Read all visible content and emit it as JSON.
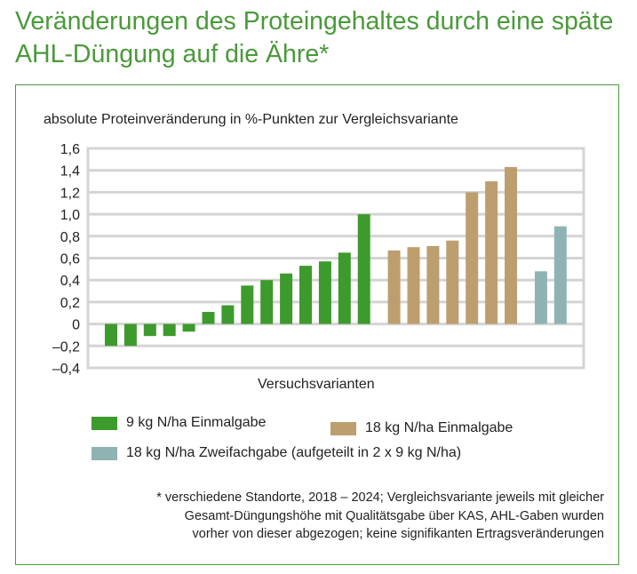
{
  "title": "Veränderungen des Proteingehaltes durch eine späte AHL-Düngung auf die Ähre*",
  "chart_data": {
    "type": "bar",
    "ylabel": "absolute Proteinveränderung in %-Punkten zur Vergleichsvariante",
    "xlabel": "Versuchsvarianten",
    "ylim": [
      -0.4,
      1.6
    ],
    "yticks": [
      "1,6",
      "1,4",
      "1,2",
      "1,0",
      "0,8",
      "0,6",
      "0,4",
      "0,2",
      "0",
      "–0,2",
      "–0,4"
    ],
    "grid": true,
    "series": [
      {
        "name": "9 kg N/ha Einmalgabe",
        "color": "#3d9a2c",
        "values": [
          -0.2,
          -0.2,
          -0.11,
          -0.11,
          -0.07,
          0.11,
          0.17,
          0.35,
          0.4,
          0.46,
          0.53,
          0.57,
          0.65,
          1.0
        ]
      },
      {
        "name": "18 kg N/ha Einmalgabe",
        "color": "#bd9e6e",
        "values": [
          0.67,
          0.7,
          0.71,
          0.76,
          1.2,
          1.3,
          1.43
        ]
      },
      {
        "name": "18 kg N/ha Zweifachgabe (aufgeteilt in 2 x 9 kg N/ha)",
        "color": "#8fb3b3",
        "values": [
          0.48,
          0.89
        ]
      }
    ]
  },
  "footnote": "* verschiedene Standorte, 2018 – 2024; Vergleichsvariante jeweils mit gleicher\nGesamt-Düngungshöhe mit Qualitätsgabe über KAS, AHL-Gaben wurden\nvorher von dieser abgezogen; keine signifikanten Ertragsveränderungen"
}
